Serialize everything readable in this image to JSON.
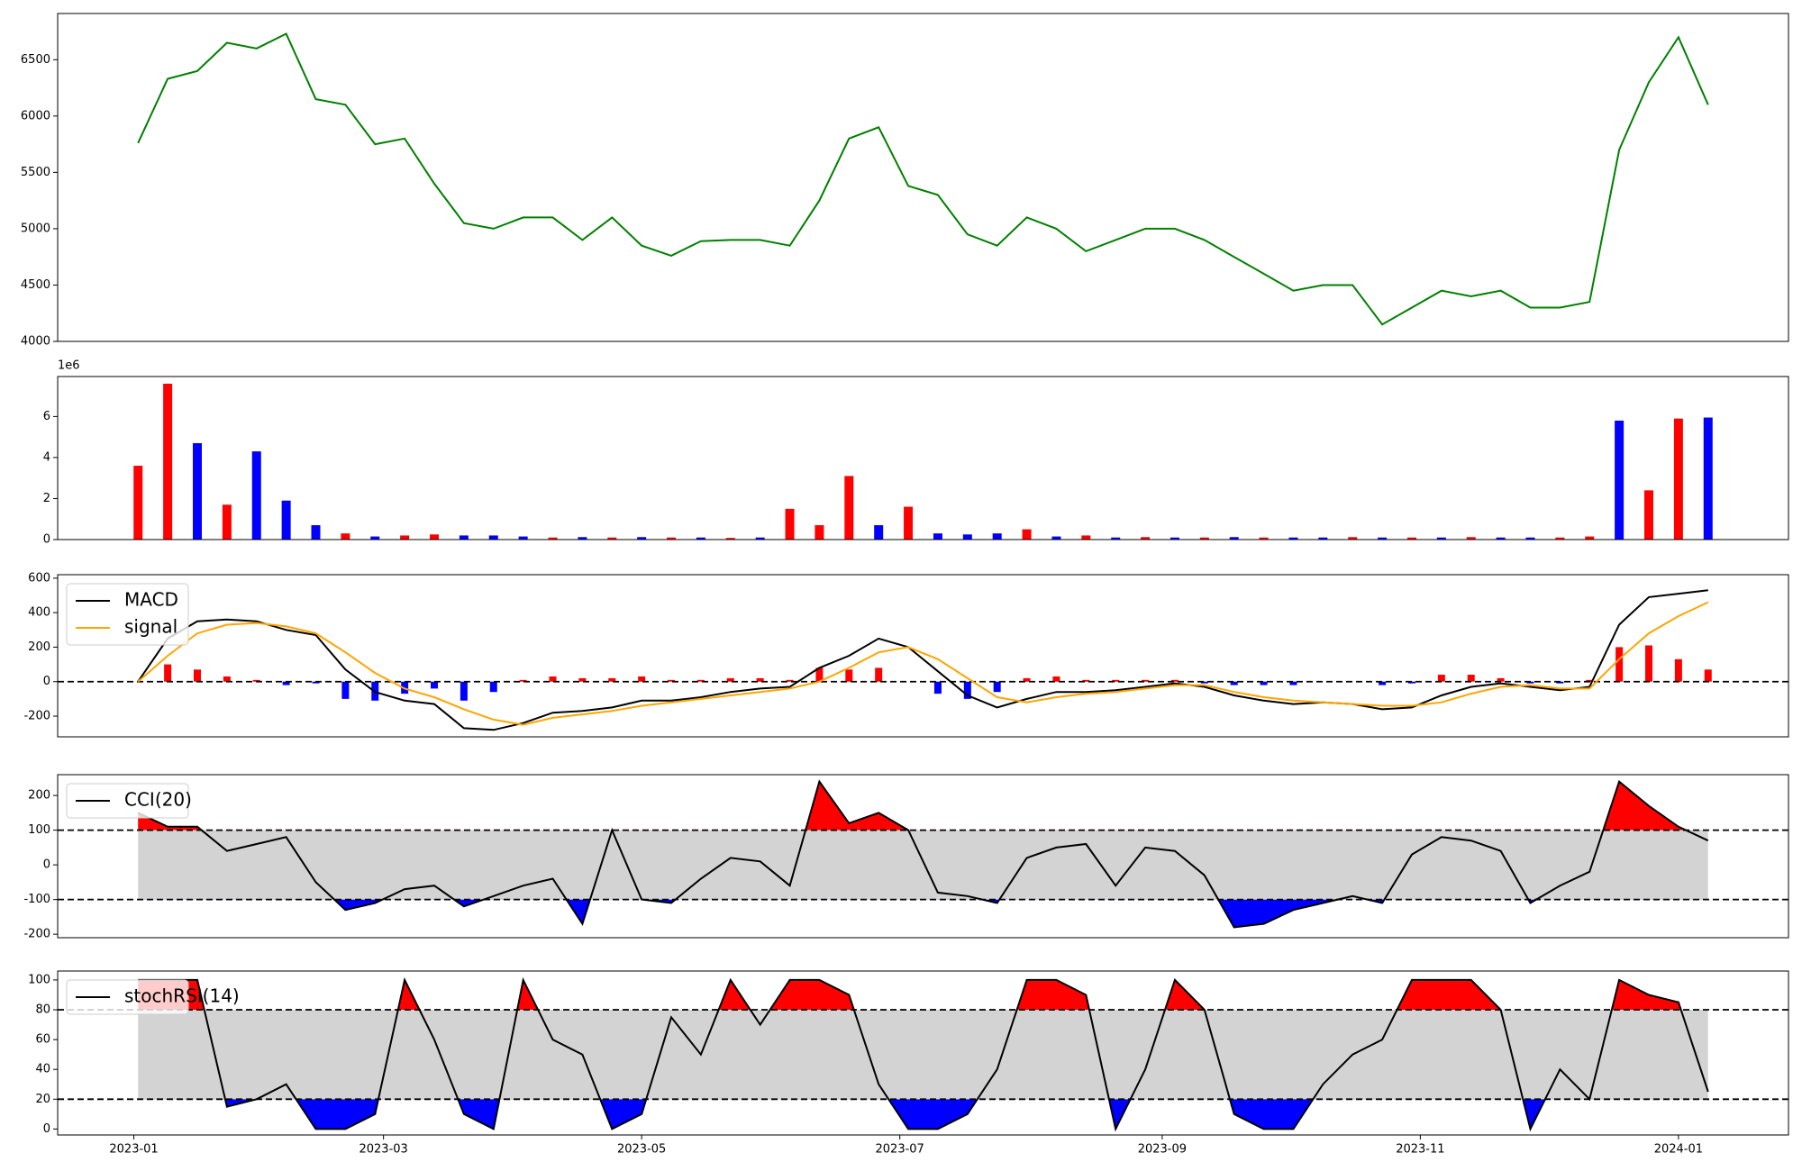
{
  "chart_data": [
    {
      "type": "line",
      "x": [
        "2023-01-02",
        "2023-01-09",
        "2023-01-16",
        "2023-01-23",
        "2023-01-30",
        "2023-02-06",
        "2023-02-13",
        "2023-02-20",
        "2023-02-27",
        "2023-03-06",
        "2023-03-13",
        "2023-03-20",
        "2023-03-27",
        "2023-04-03",
        "2023-04-10",
        "2023-04-17",
        "2023-04-24",
        "2023-05-01",
        "2023-05-08",
        "2023-05-15",
        "2023-05-22",
        "2023-05-29",
        "2023-06-05",
        "2023-06-12",
        "2023-06-19",
        "2023-06-26",
        "2023-07-03",
        "2023-07-10",
        "2023-07-17",
        "2023-07-24",
        "2023-07-31",
        "2023-08-07",
        "2023-08-14",
        "2023-08-21",
        "2023-08-28",
        "2023-09-04",
        "2023-09-11",
        "2023-09-18",
        "2023-09-25",
        "2023-10-02",
        "2023-10-09",
        "2023-10-16",
        "2023-10-23",
        "2023-10-30",
        "2023-11-06",
        "2023-11-13",
        "2023-11-20",
        "2023-11-27",
        "2023-12-04",
        "2023-12-11",
        "2023-12-18",
        "2023-12-25",
        "2024-01-01",
        "2024-01-08"
      ],
      "values": [
        5760,
        6330,
        6400,
        6650,
        6600,
        6730,
        6150,
        6100,
        5750,
        5800,
        5400,
        5050,
        5000,
        5100,
        5100,
        4900,
        5100,
        4850,
        4760,
        4890,
        4900,
        4900,
        4850,
        5250,
        5800,
        5900,
        5380,
        5300,
        4950,
        4850,
        5100,
        5000,
        4800,
        4900,
        5000,
        5000,
        4900,
        4750,
        4600,
        4450,
        4500,
        4500,
        4150,
        4300,
        4450,
        4400,
        4450,
        4300,
        4300,
        4350,
        5700,
        6300,
        6700,
        6100
      ],
      "color": "green",
      "xlim": [
        "2022-12-14",
        "2024-01-27"
      ],
      "ylim": [
        4000,
        6910
      ],
      "yticks": [
        4000,
        4500,
        5000,
        5500,
        6000,
        6500
      ]
    },
    {
      "type": "bar",
      "x": [
        "2023-01-02",
        "2023-01-09",
        "2023-01-16",
        "2023-01-23",
        "2023-01-30",
        "2023-02-06",
        "2023-02-13",
        "2023-02-20",
        "2023-02-27",
        "2023-03-06",
        "2023-03-13",
        "2023-03-20",
        "2023-03-27",
        "2023-04-03",
        "2023-04-10",
        "2023-04-17",
        "2023-04-24",
        "2023-05-01",
        "2023-05-08",
        "2023-05-15",
        "2023-05-22",
        "2023-05-29",
        "2023-06-05",
        "2023-06-12",
        "2023-06-19",
        "2023-06-26",
        "2023-07-03",
        "2023-07-10",
        "2023-07-17",
        "2023-07-24",
        "2023-07-31",
        "2023-08-07",
        "2023-08-14",
        "2023-08-21",
        "2023-08-28",
        "2023-09-04",
        "2023-09-11",
        "2023-09-18",
        "2023-09-25",
        "2023-10-02",
        "2023-10-09",
        "2023-10-16",
        "2023-10-23",
        "2023-10-30",
        "2023-11-06",
        "2023-11-13",
        "2023-11-20",
        "2023-11-27",
        "2023-12-04",
        "2023-12-11",
        "2023-12-18",
        "2023-12-25",
        "2024-01-01",
        "2024-01-08"
      ],
      "values": [
        3.6,
        7.6,
        4.7,
        1.7,
        4.3,
        1.9,
        0.7,
        0.3,
        0.15,
        0.2,
        0.25,
        0.2,
        0.2,
        0.15,
        0.1,
        0.12,
        0.1,
        0.12,
        0.1,
        0.1,
        0.08,
        0.1,
        1.5,
        0.7,
        3.1,
        0.7,
        1.6,
        0.3,
        0.25,
        0.3,
        0.5,
        0.15,
        0.2,
        0.1,
        0.12,
        0.1,
        0.1,
        0.12,
        0.1,
        0.1,
        0.1,
        0.12,
        0.1,
        0.1,
        0.1,
        0.12,
        0.1,
        0.1,
        0.1,
        0.15,
        5.8,
        2.4,
        5.9,
        5.95
      ],
      "colors": [
        "red",
        "red",
        "blue",
        "red",
        "blue",
        "blue",
        "blue",
        "red",
        "blue",
        "red",
        "red",
        "blue",
        "blue",
        "blue",
        "red",
        "blue",
        "red",
        "blue",
        "red",
        "blue",
        "red",
        "blue",
        "red",
        "red",
        "red",
        "blue",
        "red",
        "blue",
        "blue",
        "blue",
        "red",
        "blue",
        "red",
        "blue",
        "red",
        "blue",
        "red",
        "blue",
        "red",
        "blue",
        "blue",
        "red",
        "blue",
        "red",
        "blue",
        "red",
        "blue",
        "blue",
        "red",
        "red",
        "blue",
        "red",
        "red",
        "blue"
      ],
      "offset_label": "1e6",
      "xlim": [
        "2022-12-14",
        "2024-01-27"
      ],
      "ylim": [
        0,
        7.95
      ],
      "yticks": [
        0,
        2,
        4,
        6
      ]
    },
    {
      "type": "macd",
      "x": [
        "2023-01-02",
        "2023-01-09",
        "2023-01-16",
        "2023-01-23",
        "2023-01-30",
        "2023-02-06",
        "2023-02-13",
        "2023-02-20",
        "2023-02-27",
        "2023-03-06",
        "2023-03-13",
        "2023-03-20",
        "2023-03-27",
        "2023-04-03",
        "2023-04-10",
        "2023-04-17",
        "2023-04-24",
        "2023-05-01",
        "2023-05-08",
        "2023-05-15",
        "2023-05-22",
        "2023-05-29",
        "2023-06-05",
        "2023-06-12",
        "2023-06-19",
        "2023-06-26",
        "2023-07-03",
        "2023-07-10",
        "2023-07-17",
        "2023-07-24",
        "2023-07-31",
        "2023-08-07",
        "2023-08-14",
        "2023-08-21",
        "2023-08-28",
        "2023-09-04",
        "2023-09-11",
        "2023-09-18",
        "2023-09-25",
        "2023-10-02",
        "2023-10-09",
        "2023-10-16",
        "2023-10-23",
        "2023-10-30",
        "2023-11-06",
        "2023-11-13",
        "2023-11-20",
        "2023-11-27",
        "2023-12-04",
        "2023-12-11",
        "2023-12-18",
        "2023-12-25",
        "2024-01-01",
        "2024-01-08"
      ],
      "series": [
        {
          "name": "MACD",
          "color": "black",
          "values": [
            0,
            250,
            350,
            360,
            350,
            300,
            270,
            70,
            -60,
            -110,
            -130,
            -270,
            -280,
            -240,
            -180,
            -170,
            -150,
            -110,
            -110,
            -90,
            -60,
            -40,
            -30,
            80,
            150,
            250,
            200,
            60,
            -80,
            -150,
            -100,
            -60,
            -60,
            -50,
            -30,
            -10,
            -30,
            -80,
            -110,
            -130,
            -120,
            -130,
            -160,
            -150,
            -80,
            -30,
            -10,
            -30,
            -50,
            -30,
            330,
            490,
            510,
            530
          ]
        },
        {
          "name": "signal",
          "color": "orange",
          "values": [
            0,
            150,
            280,
            330,
            340,
            320,
            280,
            170,
            50,
            -40,
            -90,
            -160,
            -220,
            -250,
            -210,
            -190,
            -170,
            -140,
            -120,
            -100,
            -80,
            -60,
            -40,
            0,
            80,
            170,
            200,
            130,
            20,
            -90,
            -120,
            -90,
            -70,
            -60,
            -40,
            -20,
            -20,
            -60,
            -90,
            -110,
            -120,
            -130,
            -140,
            -140,
            -120,
            -70,
            -30,
            -20,
            -40,
            -40,
            130,
            280,
            380,
            460
          ]
        }
      ],
      "histogram": {
        "values": [
          0,
          100,
          70,
          30,
          10,
          -20,
          -10,
          -100,
          -110,
          -70,
          -40,
          -110,
          -60,
          10,
          30,
          20,
          20,
          30,
          10,
          10,
          20,
          20,
          10,
          80,
          70,
          80,
          0,
          -70,
          -100,
          -60,
          20,
          30,
          10,
          10,
          10,
          10,
          -10,
          -20,
          -20,
          -20,
          0,
          0,
          -20,
          -10,
          40,
          40,
          20,
          -10,
          -10,
          10,
          200,
          210,
          130,
          70
        ],
        "positive_color": "red",
        "negative_color": "blue"
      },
      "reference_lines": [
        0
      ],
      "legend": "upper left",
      "xlim": [
        "2022-12-14",
        "2024-01-27"
      ],
      "ylim": [
        -320,
        620
      ],
      "yticks": [
        -200,
        0,
        200,
        400,
        600
      ]
    },
    {
      "type": "oscillator",
      "x": [
        "2023-01-02",
        "2023-01-09",
        "2023-01-16",
        "2023-01-23",
        "2023-01-30",
        "2023-02-06",
        "2023-02-13",
        "2023-02-20",
        "2023-02-27",
        "2023-03-06",
        "2023-03-13",
        "2023-03-20",
        "2023-03-27",
        "2023-04-03",
        "2023-04-10",
        "2023-04-17",
        "2023-04-24",
        "2023-05-01",
        "2023-05-08",
        "2023-05-15",
        "2023-05-22",
        "2023-05-29",
        "2023-06-05",
        "2023-06-12",
        "2023-06-19",
        "2023-06-26",
        "2023-07-03",
        "2023-07-10",
        "2023-07-17",
        "2023-07-24",
        "2023-07-31",
        "2023-08-07",
        "2023-08-14",
        "2023-08-21",
        "2023-08-28",
        "2023-09-04",
        "2023-09-11",
        "2023-09-18",
        "2023-09-25",
        "2023-10-02",
        "2023-10-09",
        "2023-10-16",
        "2023-10-23",
        "2023-10-30",
        "2023-11-06",
        "2023-11-13",
        "2023-11-20",
        "2023-11-27",
        "2023-12-04",
        "2023-12-11",
        "2023-12-18",
        "2023-12-25",
        "2024-01-01",
        "2024-01-08"
      ],
      "series": [
        {
          "name": "CCI(20)",
          "color": "black",
          "values": [
            150,
            110,
            110,
            40,
            60,
            80,
            -50,
            -130,
            -110,
            -70,
            -60,
            -120,
            -90,
            -60,
            -40,
            -170,
            100,
            -100,
            -110,
            -40,
            20,
            10,
            -60,
            240,
            120,
            150,
            100,
            -80,
            -90,
            -110,
            20,
            50,
            60,
            -60,
            50,
            40,
            -30,
            -180,
            -170,
            -130,
            -110,
            -90,
            -110,
            30,
            80,
            70,
            40,
            -110,
            -60,
            -20,
            240,
            170,
            110,
            70
          ]
        }
      ],
      "thresholds": [
        -100,
        100
      ],
      "band_color": "lightgray",
      "above_color": "red",
      "below_color": "blue",
      "legend": "upper left",
      "xlim": [
        "2022-12-14",
        "2024-01-27"
      ],
      "ylim": [
        -210,
        260
      ],
      "yticks": [
        -200,
        -100,
        0,
        100,
        200
      ]
    },
    {
      "type": "oscillator",
      "x": [
        "2023-01-02",
        "2023-01-09",
        "2023-01-16",
        "2023-01-23",
        "2023-01-30",
        "2023-02-06",
        "2023-02-13",
        "2023-02-20",
        "2023-02-27",
        "2023-03-06",
        "2023-03-13",
        "2023-03-20",
        "2023-03-27",
        "2023-04-03",
        "2023-04-10",
        "2023-04-17",
        "2023-04-24",
        "2023-05-01",
        "2023-05-08",
        "2023-05-15",
        "2023-05-22",
        "2023-05-29",
        "2023-06-05",
        "2023-06-12",
        "2023-06-19",
        "2023-06-26",
        "2023-07-03",
        "2023-07-10",
        "2023-07-17",
        "2023-07-24",
        "2023-07-31",
        "2023-08-07",
        "2023-08-14",
        "2023-08-21",
        "2023-08-28",
        "2023-09-04",
        "2023-09-11",
        "2023-09-18",
        "2023-09-25",
        "2023-10-02",
        "2023-10-09",
        "2023-10-16",
        "2023-10-23",
        "2023-10-30",
        "2023-11-06",
        "2023-11-13",
        "2023-11-20",
        "2023-11-27",
        "2023-12-04",
        "2023-12-11",
        "2023-12-18",
        "2023-12-25",
        "2024-01-01",
        "2024-01-08"
      ],
      "series": [
        {
          "name": "stochRSI(14)",
          "color": "black",
          "values": [
            100,
            100,
            100,
            15,
            20,
            30,
            0,
            0,
            10,
            100,
            60,
            10,
            0,
            100,
            60,
            50,
            0,
            10,
            75,
            50,
            100,
            70,
            100,
            100,
            90,
            30,
            0,
            0,
            10,
            40,
            100,
            100,
            90,
            0,
            40,
            100,
            80,
            10,
            0,
            0,
            30,
            50,
            60,
            100,
            100,
            100,
            80,
            0,
            40,
            20,
            100,
            90,
            85,
            25
          ]
        }
      ],
      "thresholds": [
        20,
        80
      ],
      "band_color": "lightgray",
      "above_color": "red",
      "below_color": "blue",
      "legend": "upper left",
      "xlim": [
        "2022-12-14",
        "2024-01-27"
      ],
      "ylim": [
        -4,
        106
      ],
      "yticks": [
        0,
        20,
        40,
        60,
        80,
        100
      ],
      "xticks": [
        "2023-01",
        "2023-03",
        "2023-05",
        "2023-07",
        "2023-09",
        "2023-11",
        "2024-01"
      ]
    }
  ]
}
